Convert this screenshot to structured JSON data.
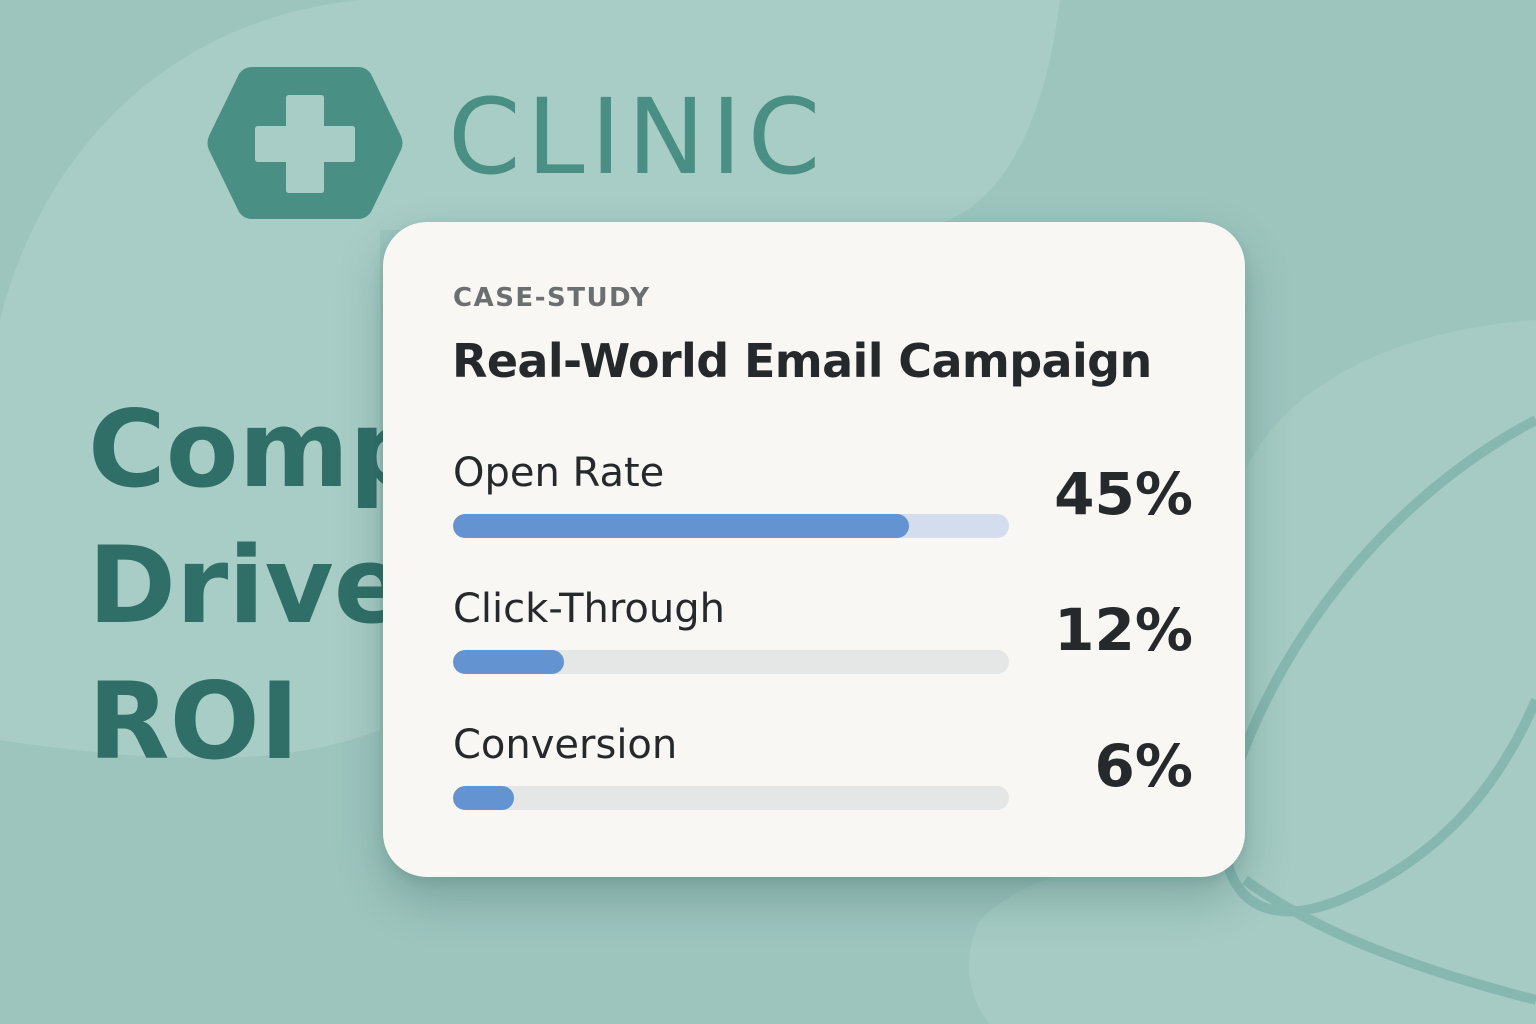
{
  "brand": {
    "name": "CLINIC"
  },
  "headline": {
    "lines": [
      "Comp",
      "Drive",
      "ROI"
    ]
  },
  "card": {
    "eyebrow": "CASE-STUDY",
    "title": "Real-World Email Campaign",
    "metrics": [
      {
        "label": "Open Rate",
        "value": "45%",
        "fill_percent": 82
      },
      {
        "label": "Click-Through",
        "value": "12%",
        "fill_percent": 20
      },
      {
        "label": "Conversion",
        "value": "6%",
        "fill_percent": 11
      }
    ]
  },
  "colors": {
    "background": "#9dc5be",
    "brand_teal": "#4a8f83",
    "headline_teal": "#2f6f67",
    "card": "#f8f7f4",
    "bar_fill": "#6393d1",
    "bar_track": "#e5e6e6"
  }
}
